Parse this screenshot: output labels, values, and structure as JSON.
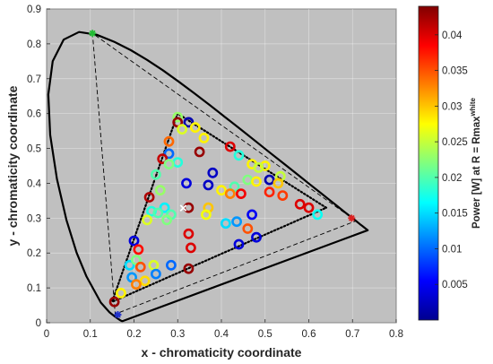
{
  "chart_data": {
    "type": "scatter",
    "xlabel": "x - chromaticity coordinate",
    "ylabel": "y - chromaticity coordinate",
    "xlim": [
      0,
      0.8
    ],
    "ylim": [
      0,
      0.9
    ],
    "xticks": [
      "0",
      "0.1",
      "0.2",
      "0.3",
      "0.4",
      "0.5",
      "0.6",
      "0.7",
      "0.8"
    ],
    "yticks": [
      "0",
      "0.1",
      "0.2",
      "0.3",
      "0.4",
      "0.5",
      "0.6",
      "0.7",
      "0.8",
      "0.9"
    ],
    "colorbar": {
      "label_main": "Power [W] at R = Rmax",
      "label_sup": "white",
      "range": [
        0,
        0.044
      ],
      "ticks": [
        "0.005",
        "0.01",
        "0.015",
        "0.02",
        "0.025",
        "0.03",
        "0.035",
        "0.04"
      ],
      "tick_values": [
        0.005,
        0.01,
        0.015,
        0.02,
        0.025,
        0.03,
        0.035,
        0.04
      ]
    },
    "locus": [
      [
        0.1741,
        0.005
      ],
      [
        0.1738,
        0.0049
      ],
      [
        0.1714,
        0.0051
      ],
      [
        0.1689,
        0.0069
      ],
      [
        0.1644,
        0.0109
      ],
      [
        0.1566,
        0.0177
      ],
      [
        0.144,
        0.0297
      ],
      [
        0.1241,
        0.0578
      ],
      [
        0.0913,
        0.1327
      ],
      [
        0.0687,
        0.2007
      ],
      [
        0.0454,
        0.295
      ],
      [
        0.0235,
        0.4127
      ],
      [
        0.0082,
        0.5384
      ],
      [
        0.0039,
        0.6548
      ],
      [
        0.0139,
        0.7502
      ],
      [
        0.0389,
        0.812
      ],
      [
        0.0743,
        0.8338
      ],
      [
        0.1142,
        0.8262
      ],
      [
        0.1547,
        0.8059
      ],
      [
        0.1929,
        0.7816
      ],
      [
        0.2296,
        0.7543
      ],
      [
        0.2658,
        0.7243
      ],
      [
        0.3016,
        0.6923
      ],
      [
        0.3373,
        0.6589
      ],
      [
        0.3731,
        0.6245
      ],
      [
        0.4087,
        0.5896
      ],
      [
        0.4441,
        0.5547
      ],
      [
        0.4788,
        0.5202
      ],
      [
        0.5125,
        0.4866
      ],
      [
        0.5448,
        0.4544
      ],
      [
        0.5752,
        0.4242
      ],
      [
        0.6029,
        0.3965
      ],
      [
        0.627,
        0.3725
      ],
      [
        0.6482,
        0.3514
      ],
      [
        0.6658,
        0.334
      ],
      [
        0.6801,
        0.3197
      ],
      [
        0.6915,
        0.3083
      ],
      [
        0.7006,
        0.2993
      ],
      [
        0.7079,
        0.292
      ],
      [
        0.714,
        0.2859
      ],
      [
        0.719,
        0.2809
      ],
      [
        0.723,
        0.277
      ],
      [
        0.726,
        0.274
      ],
      [
        0.7347,
        0.2653
      ]
    ],
    "outer_triangle": [
      [
        0.708,
        0.292
      ],
      [
        0.105,
        0.83
      ],
      [
        0.157,
        0.025
      ]
    ],
    "gamut_triangle": [
      [
        0.64,
        0.33
      ],
      [
        0.3,
        0.6
      ],
      [
        0.15,
        0.06
      ]
    ],
    "vertex_markers": [
      {
        "x": 0.105,
        "y": 0.83,
        "color": "#22bb33"
      },
      {
        "x": 0.698,
        "y": 0.3,
        "color": "#dd2222"
      },
      {
        "x": 0.163,
        "y": 0.023,
        "color": "#2233cc"
      }
    ],
    "white_point": {
      "x": 0.3127,
      "y": 0.329
    },
    "points": [
      {
        "x": 0.3,
        "y": 0.59,
        "v": 0.023
      },
      {
        "x": 0.325,
        "y": 0.575,
        "v": 0.002
      },
      {
        "x": 0.3,
        "y": 0.575,
        "v": 0.043
      },
      {
        "x": 0.34,
        "y": 0.56,
        "v": 0.028
      },
      {
        "x": 0.31,
        "y": 0.555,
        "v": 0.026
      },
      {
        "x": 0.36,
        "y": 0.53,
        "v": 0.028
      },
      {
        "x": 0.28,
        "y": 0.52,
        "v": 0.034
      },
      {
        "x": 0.42,
        "y": 0.505,
        "v": 0.04
      },
      {
        "x": 0.35,
        "y": 0.49,
        "v": 0.043
      },
      {
        "x": 0.28,
        "y": 0.485,
        "v": 0.01
      },
      {
        "x": 0.44,
        "y": 0.48,
        "v": 0.018
      },
      {
        "x": 0.265,
        "y": 0.47,
        "v": 0.041
      },
      {
        "x": 0.3,
        "y": 0.46,
        "v": 0.018
      },
      {
        "x": 0.28,
        "y": 0.455,
        "v": 0.022
      },
      {
        "x": 0.47,
        "y": 0.455,
        "v": 0.028
      },
      {
        "x": 0.5,
        "y": 0.45,
        "v": 0.028
      },
      {
        "x": 0.485,
        "y": 0.445,
        "v": 0.025
      },
      {
        "x": 0.38,
        "y": 0.43,
        "v": 0.003
      },
      {
        "x": 0.25,
        "y": 0.425,
        "v": 0.02
      },
      {
        "x": 0.535,
        "y": 0.42,
        "v": 0.025
      },
      {
        "x": 0.51,
        "y": 0.41,
        "v": 0.002
      },
      {
        "x": 0.46,
        "y": 0.41,
        "v": 0.022
      },
      {
        "x": 0.48,
        "y": 0.405,
        "v": 0.028
      },
      {
        "x": 0.53,
        "y": 0.4,
        "v": 0.03
      },
      {
        "x": 0.32,
        "y": 0.4,
        "v": 0.004
      },
      {
        "x": 0.37,
        "y": 0.395,
        "v": 0.003
      },
      {
        "x": 0.43,
        "y": 0.39,
        "v": 0.02
      },
      {
        "x": 0.4,
        "y": 0.38,
        "v": 0.028
      },
      {
        "x": 0.26,
        "y": 0.38,
        "v": 0.023
      },
      {
        "x": 0.51,
        "y": 0.375,
        "v": 0.037
      },
      {
        "x": 0.445,
        "y": 0.37,
        "v": 0.039
      },
      {
        "x": 0.42,
        "y": 0.37,
        "v": 0.033
      },
      {
        "x": 0.54,
        "y": 0.365,
        "v": 0.036
      },
      {
        "x": 0.235,
        "y": 0.36,
        "v": 0.042
      },
      {
        "x": 0.58,
        "y": 0.34,
        "v": 0.04
      },
      {
        "x": 0.6,
        "y": 0.33,
        "v": 0.04
      },
      {
        "x": 0.37,
        "y": 0.33,
        "v": 0.03
      },
      {
        "x": 0.325,
        "y": 0.33,
        "v": 0.043
      },
      {
        "x": 0.27,
        "y": 0.33,
        "v": 0.016
      },
      {
        "x": 0.24,
        "y": 0.32,
        "v": 0.018
      },
      {
        "x": 0.255,
        "y": 0.315,
        "v": 0.02
      },
      {
        "x": 0.285,
        "y": 0.31,
        "v": 0.02
      },
      {
        "x": 0.365,
        "y": 0.31,
        "v": 0.027
      },
      {
        "x": 0.47,
        "y": 0.31,
        "v": 0.005
      },
      {
        "x": 0.62,
        "y": 0.31,
        "v": 0.017
      },
      {
        "x": 0.23,
        "y": 0.295,
        "v": 0.026
      },
      {
        "x": 0.275,
        "y": 0.295,
        "v": 0.022
      },
      {
        "x": 0.435,
        "y": 0.29,
        "v": 0.012
      },
      {
        "x": 0.41,
        "y": 0.285,
        "v": 0.015
      },
      {
        "x": 0.46,
        "y": 0.27,
        "v": 0.035
      },
      {
        "x": 0.325,
        "y": 0.255,
        "v": 0.04
      },
      {
        "x": 0.44,
        "y": 0.225,
        "v": 0.004
      },
      {
        "x": 0.48,
        "y": 0.245,
        "v": 0.004
      },
      {
        "x": 0.33,
        "y": 0.215,
        "v": 0.04
      },
      {
        "x": 0.2,
        "y": 0.235,
        "v": 0.004
      },
      {
        "x": 0.21,
        "y": 0.21,
        "v": 0.038
      },
      {
        "x": 0.19,
        "y": 0.165,
        "v": 0.015
      },
      {
        "x": 0.205,
        "y": 0.18,
        "v": 0.022
      },
      {
        "x": 0.245,
        "y": 0.165,
        "v": 0.026
      },
      {
        "x": 0.285,
        "y": 0.165,
        "v": 0.01
      },
      {
        "x": 0.215,
        "y": 0.16,
        "v": 0.035
      },
      {
        "x": 0.325,
        "y": 0.155,
        "v": 0.043
      },
      {
        "x": 0.25,
        "y": 0.14,
        "v": 0.011
      },
      {
        "x": 0.195,
        "y": 0.13,
        "v": 0.012
      },
      {
        "x": 0.225,
        "y": 0.12,
        "v": 0.029
      },
      {
        "x": 0.205,
        "y": 0.11,
        "v": 0.033
      },
      {
        "x": 0.17,
        "y": 0.085,
        "v": 0.028
      },
      {
        "x": 0.155,
        "y": 0.06,
        "v": 0.043
      }
    ]
  }
}
